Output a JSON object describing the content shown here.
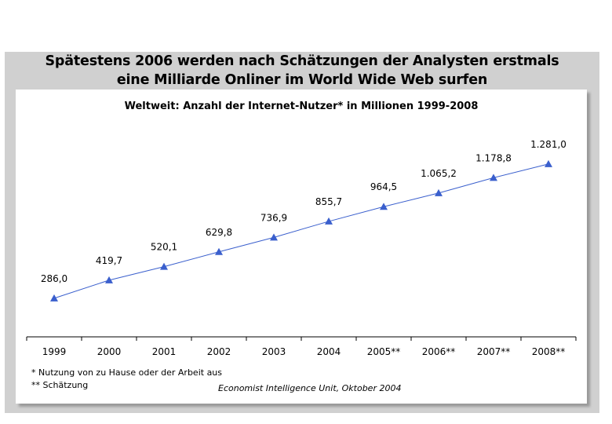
{
  "headline": {
    "line1": "Spätestens 2006 werden nach Schätzungen der Analysten erstmals",
    "line2": "eine Milliarde Onliner im World Wide Web surfen"
  },
  "footnotes": {
    "note1": "*  Nutzung von zu Hause oder der Arbeit aus",
    "note2": "** Schätzung"
  },
  "source": "Economist Intelligence Unit, Oktober 2004",
  "chart_data": {
    "type": "line",
    "title": "Weltweit: Anzahl der Internet-Nutzer* in Millionen 1999-2008",
    "categories": [
      "1999",
      "2000",
      "2001",
      "2002",
      "2003",
      "2004",
      "2005**",
      "2006**",
      "2007**",
      "2008**"
    ],
    "values": [
      286.0,
      419.7,
      520.1,
      629.8,
      736.9,
      855.7,
      964.5,
      1065.2,
      1178.8,
      1281.0
    ],
    "data_labels": [
      "286,0",
      "419,7",
      "520,1",
      "629,8",
      "736,9",
      "855,7",
      "964,5",
      "1.065,2",
      "1.178,8",
      "1.281,0"
    ],
    "ylim": [
      0,
      1600
    ],
    "grid": false,
    "legend": "none",
    "marker": "triangle",
    "color": "#3a5fcd"
  }
}
